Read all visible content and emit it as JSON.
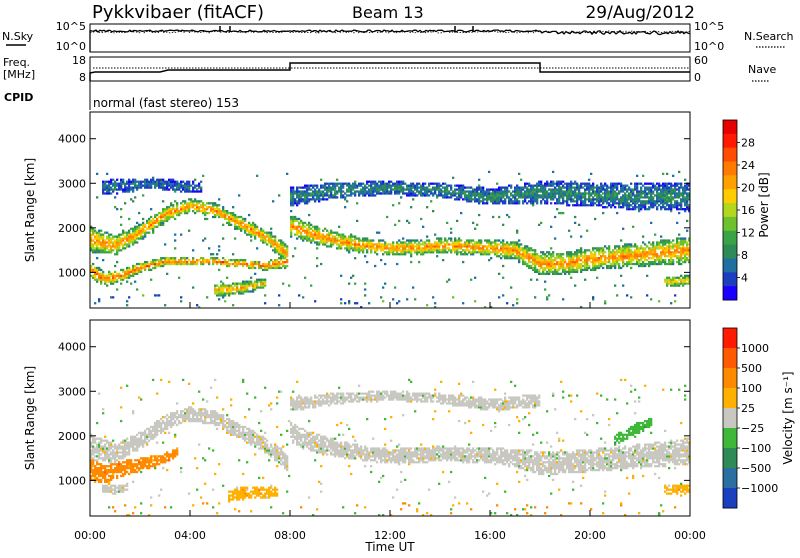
{
  "header": {
    "station": "Pykkvibaer (fitACF)",
    "beam": "Beam 13",
    "date": "29/Aug/2012"
  },
  "status_panels": {
    "nsky_label": "N.Sky",
    "nsky_ticks": [
      "10^5",
      "10^0"
    ],
    "nsearch_ticks": [
      "10^5",
      "10^0"
    ],
    "nsearch_label": "N.Search",
    "freq_label": "Freq.",
    "freq_unit": "[MHz]",
    "freq_ticks": [
      "18",
      "8"
    ],
    "nave_ticks": [
      "60",
      "0"
    ],
    "nave_label": "Nave",
    "cpid_label": "CPID",
    "cpid_text": "normal (fast stereo) 153"
  },
  "chart_data": [
    {
      "type": "heatmap",
      "name": "power",
      "ylabel": "Slant Range [km]",
      "x_ticks": [
        "00:00",
        "04:00",
        "08:00",
        "12:00",
        "16:00",
        "20:00",
        "00:00"
      ],
      "x_range_hours": [
        0,
        24
      ],
      "y_ticks": [
        1000,
        2000,
        3000,
        4000
      ],
      "ylim": [
        200,
        4600
      ],
      "colorbar": {
        "label": "Power [dB]",
        "ticks": [
          "28",
          "24",
          "20",
          "16",
          "12",
          "8",
          "4"
        ],
        "range": [
          0,
          32
        ],
        "colors": [
          "#1a00ff",
          "#1c3fbf",
          "#1f6fa0",
          "#2e8b57",
          "#3aa346",
          "#6dc22c",
          "#b3d61f",
          "#ffcc00",
          "#ffa000",
          "#ff7a00",
          "#ff4d00",
          "#ff1a00",
          "#e60000"
        ]
      },
      "bands": [
        {
          "t": [
            0.0,
            1.0,
            2.0,
            3.0,
            4.0,
            5.0,
            6.0,
            7.0,
            7.95
          ],
          "center": [
            1750,
            1600,
            1900,
            2300,
            2500,
            2400,
            2100,
            1800,
            1400
          ],
          "width": [
            600,
            450,
            380,
            330,
            330,
            330,
            330,
            350,
            400
          ],
          "power": 24
        },
        {
          "t": [
            0.0,
            0.6,
            1.2,
            2.0,
            3.0,
            4.0,
            5.0,
            6.0,
            7.0,
            7.95
          ],
          "center": [
            1050,
            850,
            920,
            1100,
            1250,
            1250,
            1250,
            1200,
            1150,
            1250
          ],
          "width": [
            380,
            320,
            260,
            230,
            200,
            180,
            180,
            180,
            200,
            280
          ],
          "power": 26
        },
        {
          "t": [
            5.0,
            5.5,
            6.0,
            6.5,
            7.0
          ],
          "center": [
            600,
            620,
            650,
            700,
            760
          ],
          "width": [
            260,
            300,
            280,
            260,
            200
          ],
          "power": 22
        },
        {
          "t": [
            8.0,
            9.0,
            10.0,
            11.0,
            12.0,
            13.0,
            14.0,
            15.0,
            16.0,
            17.0,
            18.0,
            19.0,
            20.0,
            21.0,
            22.0,
            23.0,
            24.0
          ],
          "center": [
            2050,
            1850,
            1700,
            1600,
            1550,
            1560,
            1600,
            1580,
            1550,
            1500,
            1200,
            1200,
            1300,
            1350,
            1400,
            1450,
            1500
          ],
          "width": [
            500,
            420,
            380,
            340,
            330,
            330,
            340,
            360,
            360,
            420,
            520,
            500,
            500,
            520,
            540,
            560,
            600
          ],
          "power": 24
        },
        {
          "t": [
            8.0,
            10.0,
            12.0,
            14.0,
            16.0,
            18.0,
            20.0,
            22.0,
            24.0
          ],
          "center": [
            2700,
            2850,
            2900,
            2850,
            2700,
            2800,
            2750,
            2700,
            2700
          ],
          "width": [
            450,
            350,
            300,
            320,
            380,
            500,
            550,
            600,
            650
          ],
          "power": 8
        },
        {
          "t": [
            0.5,
            1.5,
            2.5,
            3.5,
            4.5
          ],
          "center": [
            2900,
            2950,
            3000,
            2950,
            2900
          ],
          "width": [
            350,
            300,
            250,
            250,
            250
          ],
          "power": 6
        },
        {
          "t": [
            23.0,
            23.5,
            24.0
          ],
          "center": [
            800,
            800,
            820
          ],
          "width": [
            220,
            260,
            260
          ],
          "power": 20
        }
      ]
    },
    {
      "type": "heatmap",
      "name": "velocity",
      "ylabel": "Slant Range [km]",
      "x_ticks": [
        "00:00",
        "04:00",
        "08:00",
        "12:00",
        "16:00",
        "20:00",
        "00:00"
      ],
      "xlabel": "Time UT",
      "x_range_hours": [
        0,
        24
      ],
      "y_ticks": [
        1000,
        2000,
        3000,
        4000
      ],
      "ylim": [
        200,
        4600
      ],
      "colorbar": {
        "label": "Velocity [m s⁻¹]",
        "ticks": [
          "1000",
          "500",
          "100",
          "25",
          "−25",
          "−100",
          "−500",
          "−1000"
        ],
        "colors": [
          "#1a3fbf",
          "#2a6fa0",
          "#2e8b57",
          "#3fb83a",
          "#c8c8c0",
          "#ffb000",
          "#ff8a00",
          "#ff5a00",
          "#ff1a00"
        ]
      },
      "bands": [
        {
          "t": [
            0.0,
            1.0,
            2.0,
            3.0,
            4.0,
            5.0,
            6.0,
            7.0,
            7.95
          ],
          "center": [
            1750,
            1600,
            1900,
            2300,
            2500,
            2400,
            2100,
            1800,
            1400
          ],
          "width": [
            600,
            450,
            380,
            330,
            330,
            330,
            330,
            350,
            400
          ],
          "vel": 0
        },
        {
          "t": [
            0.0,
            0.6,
            1.2,
            2.0,
            3.0,
            3.5
          ],
          "center": [
            1250,
            1150,
            1250,
            1350,
            1500,
            1650
          ],
          "width": [
            500,
            420,
            360,
            300,
            240,
            200
          ],
          "vel": -300
        },
        {
          "t": [
            0.5,
            1.0,
            1.5
          ],
          "center": [
            820,
            800,
            850
          ],
          "width": [
            180,
            200,
            160
          ],
          "vel": 0
        },
        {
          "t": [
            5.5,
            6.0,
            6.5,
            7.0,
            7.5
          ],
          "center": [
            650,
            700,
            720,
            720,
            760
          ],
          "width": [
            250,
            280,
            260,
            240,
            220
          ],
          "vel": -150
        },
        {
          "t": [
            8.0,
            9.0,
            10.0,
            11.0,
            12.0,
            13.0,
            14.0,
            15.0,
            16.0,
            17.0,
            18.0,
            19.0,
            20.0,
            21.0,
            22.0,
            23.0,
            24.0
          ],
          "center": [
            2050,
            1850,
            1700,
            1600,
            1550,
            1560,
            1600,
            1580,
            1550,
            1500,
            1400,
            1400,
            1450,
            1500,
            1550,
            1600,
            1650
          ],
          "width": [
            500,
            420,
            380,
            340,
            330,
            330,
            340,
            360,
            360,
            420,
            520,
            500,
            500,
            520,
            540,
            560,
            600
          ],
          "vel": 0
        },
        {
          "t": [
            8.0,
            10.0,
            12.0,
            14.0,
            16.0,
            18.0
          ],
          "center": [
            2700,
            2850,
            2900,
            2850,
            2700,
            2800
          ],
          "width": [
            300,
            250,
            220,
            240,
            280,
            300
          ],
          "vel": 0
        },
        {
          "t": [
            21.0,
            21.5,
            22.0,
            22.5
          ],
          "center": [
            1900,
            2050,
            2200,
            2300
          ],
          "width": [
            200,
            240,
            260,
            220
          ],
          "vel": 120
        },
        {
          "t": [
            23.0,
            23.5,
            24.0
          ],
          "center": [
            800,
            780,
            820
          ],
          "width": [
            200,
            230,
            240
          ],
          "vel": -150
        }
      ]
    }
  ]
}
